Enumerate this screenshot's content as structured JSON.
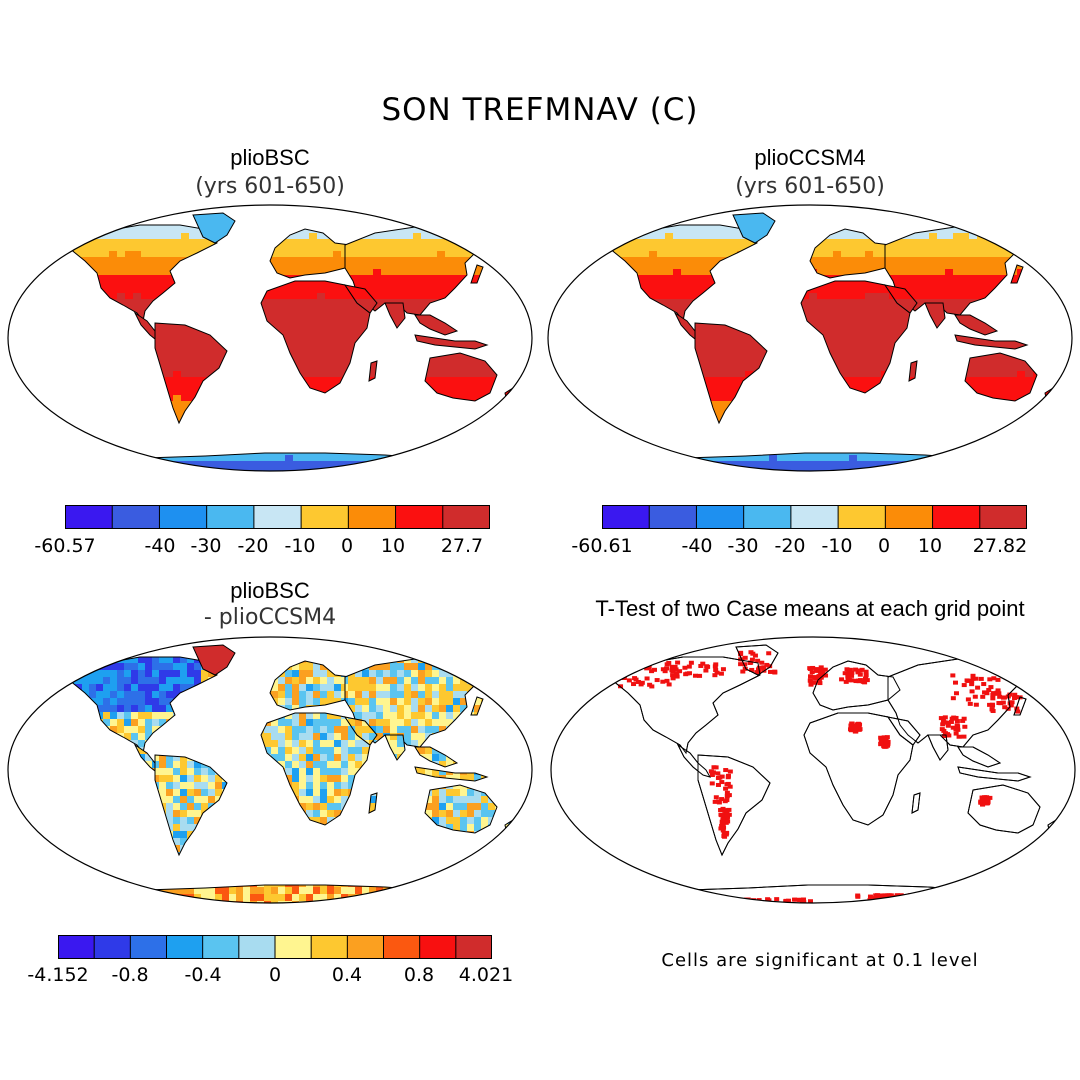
{
  "figure": {
    "title": "SON TREFMNAV (C)"
  },
  "panels": [
    {
      "title": "plioBSC",
      "subtitle": "(yrs 601-650)"
    },
    {
      "title": "plioCCSM4",
      "subtitle": "(yrs 601-650)"
    },
    {
      "title": "plioBSC",
      "subtitle": "- plioCCSM4"
    },
    {
      "title": "T-Test of two Case means at each grid point",
      "subtitle": ""
    }
  ],
  "colorbars": {
    "bsc": {
      "colors": [
        "#3a18f0",
        "#3a5ce0",
        "#1e90f0",
        "#4ab8f0",
        "#c8e6f4",
        "#fdc830",
        "#fb8c08",
        "#fb1010",
        "#d02c2c"
      ],
      "labels": [
        "-60.57",
        "-40",
        "-30",
        "-20",
        "-10",
        "0",
        "10",
        "27.7"
      ]
    },
    "ccsm4": {
      "colors": [
        "#3a18f0",
        "#3a5ce0",
        "#1e90f0",
        "#4ab8f0",
        "#c8e6f4",
        "#fdc830",
        "#fb8c08",
        "#fb1010",
        "#d02c2c"
      ],
      "labels": [
        "-60.61",
        "-40",
        "-30",
        "-20",
        "-10",
        "0",
        "10",
        "27.82"
      ]
    },
    "diff": {
      "colors": [
        "#3a18f0",
        "#2f3ae8",
        "#2d70e8",
        "#1ea0f0",
        "#5ac4f0",
        "#a8dcf0",
        "#fff590",
        "#fdc830",
        "#fba020",
        "#fb5810",
        "#f81010",
        "#d02c2c"
      ],
      "labels": [
        "-4.152",
        "-0.8",
        "-0.4",
        "0",
        "0.4",
        "0.8",
        "4.021"
      ]
    }
  },
  "note": "Cells are significant at 0.1 level"
}
